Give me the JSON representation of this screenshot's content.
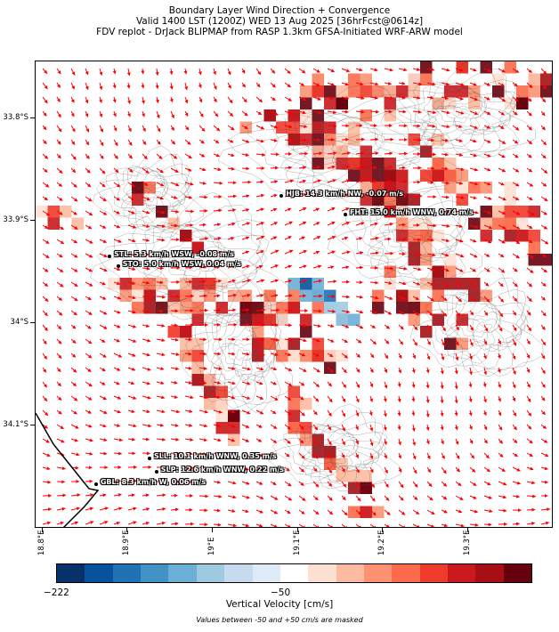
{
  "title": {
    "line1": "Boundary Layer Wind Direction + Convergence",
    "line2": "Valid 1400 LST (1200Z) WED 13 Aug 2025 [36hrFcst@0614z]",
    "line3": "FDV replot - DrJack BLIPMAP from RASP 1.3km GFSA-Initiated WRF-ARW model"
  },
  "axes": {
    "lat_labels": [
      "33.8°S",
      "33.9°S",
      "34°S",
      "34.1°S"
    ],
    "lon_labels": [
      "18.8°E",
      "18.9°E",
      "19°E",
      "19.1°E",
      "19.2°E",
      "19.3°E"
    ]
  },
  "stations": [
    {
      "label": "HJB: 14.3 km/h NW, -0.07 m/s",
      "lon": 19.08,
      "lat": -33.878
    },
    {
      "label": "FHT: 15.0 km/h WNW, 0.74 m/s",
      "lon": 19.155,
      "lat": -33.896
    },
    {
      "label": "STL: 5.3 km/h WSW, -0.08 m/s",
      "lon": 18.878,
      "lat": -33.937
    },
    {
      "label": "STO: 5.0 km/h WSW, 0.04 m/s",
      "lon": 18.888,
      "lat": -33.947
    },
    {
      "label": "SLL: 10.1 km/h WNW, 0.35 m/s",
      "lon": 18.925,
      "lat": -34.135
    },
    {
      "label": "SLP: 12.6 km/h WNW, 0.22 m/s",
      "lon": 18.933,
      "lat": -34.148
    },
    {
      "label": "GBL: 8.3 km/h W, 0.06 m/s",
      "lon": 18.862,
      "lat": -34.16
    }
  ],
  "colorbar": {
    "label": "Vertical Velocity [cm/s]",
    "ticks": [
      "−222",
      "−50"
    ],
    "colors": [
      "#08306b",
      "#08519c",
      "#2171b5",
      "#4292c6",
      "#6baed6",
      "#9ecae1",
      "#c6dbef",
      "#deebf7",
      "#ffffff",
      "#fee0d2",
      "#fcbba1",
      "#fc9272",
      "#fb6a4a",
      "#ef3b2c",
      "#cb181d",
      "#a50f15",
      "#67000d"
    ]
  },
  "footnote": "Values between -50 and +50 cm/s are masked"
}
